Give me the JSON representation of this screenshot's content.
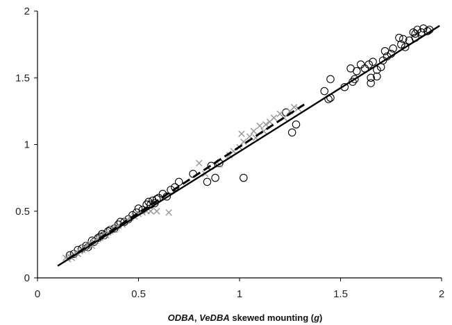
{
  "chart_data": {
    "type": "scatter",
    "title": "",
    "xlabel_parts": [
      {
        "text": "ODBA",
        "italic": true
      },
      {
        "text": ", ",
        "italic": false
      },
      {
        "text": "VeDBA",
        "italic": true
      },
      {
        "text": " skewed mounting (",
        "italic": false
      },
      {
        "text": "g",
        "italic": true
      },
      {
        "text": ")",
        "italic": false
      }
    ],
    "ylabel": "",
    "xlim": [
      0,
      2
    ],
    "ylim": [
      0,
      2
    ],
    "x_ticks": [
      "0",
      "0.5",
      "1",
      "1.5",
      "2"
    ],
    "y_ticks": [
      "0",
      "0.5",
      "1",
      "1.5",
      "2"
    ],
    "grid": false,
    "series": [
      {
        "marker": "circle",
        "color": "#000000",
        "points": [
          [
            0.16,
            0.17
          ],
          [
            0.18,
            0.18
          ],
          [
            0.2,
            0.21
          ],
          [
            0.22,
            0.22
          ],
          [
            0.24,
            0.24
          ],
          [
            0.25,
            0.23
          ],
          [
            0.27,
            0.28
          ],
          [
            0.28,
            0.27
          ],
          [
            0.3,
            0.3
          ],
          [
            0.31,
            0.31
          ],
          [
            0.32,
            0.33
          ],
          [
            0.33,
            0.32
          ],
          [
            0.35,
            0.35
          ],
          [
            0.36,
            0.36
          ],
          [
            0.38,
            0.37
          ],
          [
            0.4,
            0.4
          ],
          [
            0.41,
            0.42
          ],
          [
            0.43,
            0.42
          ],
          [
            0.45,
            0.44
          ],
          [
            0.47,
            0.47
          ],
          [
            0.49,
            0.49
          ],
          [
            0.5,
            0.52
          ],
          [
            0.52,
            0.51
          ],
          [
            0.54,
            0.55
          ],
          [
            0.55,
            0.57
          ],
          [
            0.56,
            0.55
          ],
          [
            0.57,
            0.58
          ],
          [
            0.58,
            0.56
          ],
          [
            0.59,
            0.59
          ],
          [
            0.6,
            0.6
          ],
          [
            0.62,
            0.63
          ],
          [
            0.64,
            0.61
          ],
          [
            0.66,
            0.66
          ],
          [
            0.68,
            0.68
          ],
          [
            0.7,
            0.72
          ],
          [
            0.77,
            0.78
          ],
          [
            0.84,
            0.72
          ],
          [
            0.86,
            0.84
          ],
          [
            0.88,
            0.75
          ],
          [
            0.9,
            0.86
          ],
          [
            1.02,
            0.75
          ],
          [
            1.23,
            1.24
          ],
          [
            1.26,
            1.09
          ],
          [
            1.28,
            1.15
          ],
          [
            1.42,
            1.4
          ],
          [
            1.44,
            1.34
          ],
          [
            1.45,
            1.35
          ],
          [
            1.45,
            1.49
          ],
          [
            1.52,
            1.43
          ],
          [
            1.55,
            1.57
          ],
          [
            1.56,
            1.47
          ],
          [
            1.57,
            1.49
          ],
          [
            1.58,
            1.55
          ],
          [
            1.6,
            1.6
          ],
          [
            1.62,
            1.57
          ],
          [
            1.64,
            1.6
          ],
          [
            1.65,
            1.5
          ],
          [
            1.65,
            1.46
          ],
          [
            1.66,
            1.62
          ],
          [
            1.68,
            1.56
          ],
          [
            1.68,
            1.51
          ],
          [
            1.7,
            1.58
          ],
          [
            1.71,
            1.63
          ],
          [
            1.72,
            1.7
          ],
          [
            1.73,
            1.66
          ],
          [
            1.75,
            1.68
          ],
          [
            1.76,
            1.72
          ],
          [
            1.79,
            1.8
          ],
          [
            1.8,
            1.75
          ],
          [
            1.81,
            1.79
          ],
          [
            1.84,
            1.78
          ],
          [
            1.86,
            1.84
          ],
          [
            1.87,
            1.83
          ],
          [
            1.88,
            1.86
          ],
          [
            1.9,
            1.84
          ],
          [
            1.91,
            1.87
          ],
          [
            1.93,
            1.85
          ],
          [
            1.94,
            1.86
          ],
          [
            1.82,
            1.73
          ],
          [
            1.87,
            1.8
          ]
        ]
      },
      {
        "marker": "cross",
        "color": "#9a9a9a",
        "points": [
          [
            0.14,
            0.15
          ],
          [
            0.15,
            0.14
          ],
          [
            0.16,
            0.16
          ],
          [
            0.17,
            0.15
          ],
          [
            0.18,
            0.17
          ],
          [
            0.19,
            0.19
          ],
          [
            0.2,
            0.18
          ],
          [
            0.21,
            0.2
          ],
          [
            0.22,
            0.21
          ],
          [
            0.23,
            0.23
          ],
          [
            0.24,
            0.22
          ],
          [
            0.25,
            0.25
          ],
          [
            0.26,
            0.26
          ],
          [
            0.27,
            0.24
          ],
          [
            0.28,
            0.27
          ],
          [
            0.29,
            0.28
          ],
          [
            0.3,
            0.29
          ],
          [
            0.31,
            0.3
          ],
          [
            0.32,
            0.31
          ],
          [
            0.33,
            0.33
          ],
          [
            0.34,
            0.32
          ],
          [
            0.35,
            0.34
          ],
          [
            0.36,
            0.35
          ],
          [
            0.37,
            0.37
          ],
          [
            0.38,
            0.36
          ],
          [
            0.39,
            0.38
          ],
          [
            0.4,
            0.39
          ],
          [
            0.42,
            0.4
          ],
          [
            0.44,
            0.43
          ],
          [
            0.46,
            0.45
          ],
          [
            0.48,
            0.46
          ],
          [
            0.5,
            0.48
          ],
          [
            0.52,
            0.49
          ],
          [
            0.54,
            0.5
          ],
          [
            0.56,
            0.5
          ],
          [
            0.59,
            0.5
          ],
          [
            0.65,
            0.49
          ],
          [
            0.8,
            0.86
          ],
          [
            0.83,
            0.78
          ],
          [
            0.9,
            0.85
          ],
          [
            0.95,
            0.92
          ],
          [
            0.97,
            0.95
          ],
          [
            1.0,
            0.98
          ],
          [
            1.01,
            1.08
          ],
          [
            1.02,
            1.02
          ],
          [
            1.05,
            1.06
          ],
          [
            1.07,
            1.1
          ],
          [
            1.08,
            1.05
          ],
          [
            1.1,
            1.14
          ],
          [
            1.12,
            1.1
          ],
          [
            1.13,
            1.15
          ],
          [
            1.15,
            1.17
          ],
          [
            1.17,
            1.2
          ],
          [
            1.2,
            1.23
          ],
          [
            1.22,
            1.2
          ],
          [
            1.25,
            1.25
          ],
          [
            1.27,
            1.28
          ],
          [
            1.29,
            1.27
          ]
        ]
      }
    ],
    "lines": [
      {
        "style": "solid",
        "x": [
          0.1,
          1.99
        ],
        "y": [
          0.09,
          1.89
        ]
      },
      {
        "style": "dashed",
        "x": [
          0.15,
          1.32
        ],
        "y": [
          0.14,
          1.3
        ]
      }
    ]
  }
}
